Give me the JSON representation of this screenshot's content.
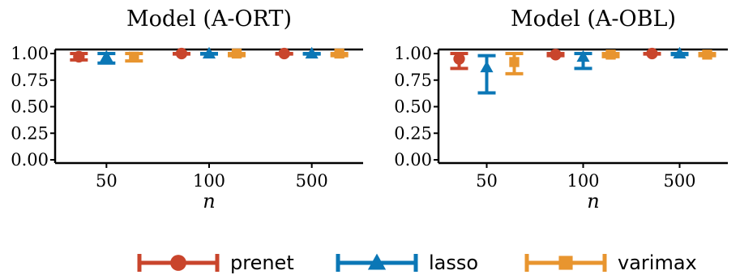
{
  "chart_data": [
    {
      "type": "errorbar",
      "title": "Model (A-ORT)",
      "xlabel": "n",
      "ylabel": "",
      "categories": [
        "50",
        "100",
        "500"
      ],
      "ylim": [
        0,
        1.0
      ],
      "yticks": [
        "0.00",
        "0.25",
        "0.50",
        "0.75",
        "1.00"
      ],
      "grid": false,
      "series": [
        {
          "name": "prenet",
          "color": "#c9452c",
          "marker": "circle",
          "mean": [
            0.97,
            1.0,
            1.0
          ],
          "low": [
            0.94,
            0.995,
            0.995
          ],
          "high": [
            1.0,
            1.0,
            1.0
          ]
        },
        {
          "name": "lasso",
          "color": "#0b77b6",
          "marker": "triangle",
          "mean": [
            0.97,
            1.0,
            1.0
          ],
          "low": [
            0.91,
            0.995,
            0.995
          ],
          "high": [
            1.0,
            1.0,
            1.0
          ]
        },
        {
          "name": "varimax",
          "color": "#e8952f",
          "marker": "square",
          "mean": [
            0.97,
            1.0,
            1.0
          ],
          "low": [
            0.93,
            0.98,
            0.98
          ],
          "high": [
            1.0,
            1.0,
            1.0
          ]
        }
      ]
    },
    {
      "type": "errorbar",
      "title": "Model (A-OBL)",
      "xlabel": "n",
      "ylabel": "",
      "categories": [
        "50",
        "100",
        "500"
      ],
      "ylim": [
        0,
        1.0
      ],
      "yticks": [
        "0.00",
        "0.25",
        "0.50",
        "0.75",
        "1.00"
      ],
      "grid": false,
      "series": [
        {
          "name": "prenet",
          "color": "#c9452c",
          "marker": "circle",
          "mean": [
            0.95,
            0.99,
            1.0
          ],
          "low": [
            0.86,
            0.98,
            0.995
          ],
          "high": [
            1.0,
            1.0,
            1.0
          ]
        },
        {
          "name": "lasso",
          "color": "#0b77b6",
          "marker": "triangle",
          "mean": [
            0.87,
            0.97,
            1.0
          ],
          "low": [
            0.63,
            0.86,
            0.99
          ],
          "high": [
            0.98,
            1.0,
            1.0
          ]
        },
        {
          "name": "varimax",
          "color": "#e8952f",
          "marker": "square",
          "mean": [
            0.92,
            0.99,
            0.99
          ],
          "low": [
            0.81,
            0.97,
            0.98
          ],
          "high": [
            1.0,
            1.0,
            1.0
          ]
        }
      ]
    }
  ],
  "legend": {
    "position": "bottom",
    "items": [
      {
        "label": "prenet",
        "color": "#c9452c",
        "marker": "circle"
      },
      {
        "label": "lasso",
        "color": "#0b77b6",
        "marker": "triangle"
      },
      {
        "label": "varimax",
        "color": "#e8952f",
        "marker": "square"
      }
    ]
  }
}
